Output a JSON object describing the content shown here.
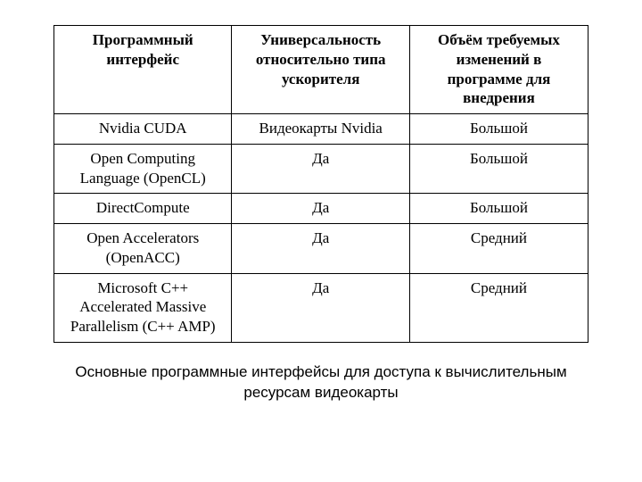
{
  "table": {
    "headers": {
      "col1": "Программный интерфейс",
      "col2": "Универсальность относительно типа ускорителя",
      "col3": "Объём требуемых изменений в программе для внедрения"
    },
    "rows": [
      {
        "name": "Nvidia CUDA",
        "universal": "Видеокарты Nvidia",
        "changes": "Большой"
      },
      {
        "name": "Open Computing Language (OpenCL)",
        "universal": "Да",
        "changes": "Большой"
      },
      {
        "name": "DirectCompute",
        "universal": "Да",
        "changes": "Большой"
      },
      {
        "name": "Open Accelerators (OpenACC)",
        "universal": "Да",
        "changes": "Средний"
      },
      {
        "name": "Microsoft C++ Accelerated Massive Parallelism (C++ AMP)",
        "universal": "Да",
        "changes": "Средний"
      }
    ]
  },
  "caption": "Основные программные интерфейсы для доступа к вычислительным ресурсам видеокарты",
  "style": {
    "page_bg": "#ffffff",
    "text_color": "#000000",
    "border_color": "#000000",
    "header_font_weight": "bold",
    "table_font_family": "Times New Roman",
    "caption_font_family": "Arial",
    "font_size_pt": 13,
    "caption_font_size_pt": 13
  }
}
